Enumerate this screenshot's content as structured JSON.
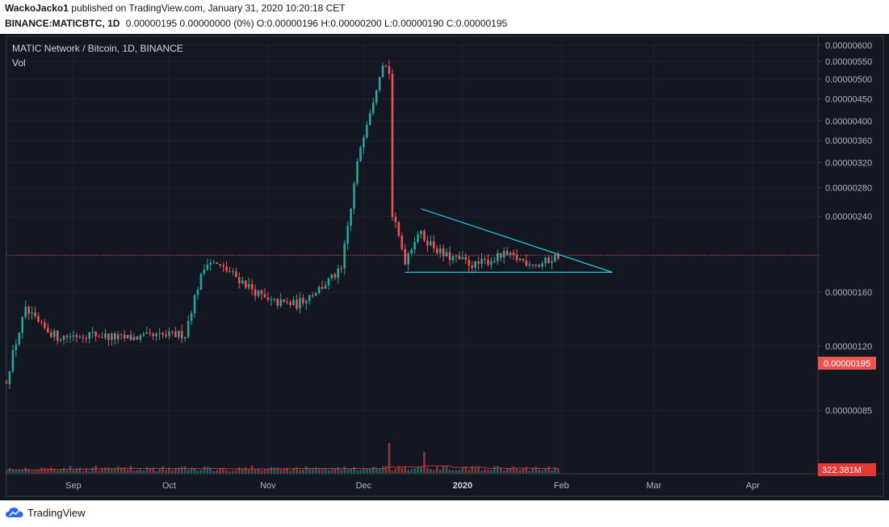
{
  "header": {
    "author": "WackoJacko1",
    "published_text": "published on TradingView.com, January 31, 2020 10:20:18 CET",
    "symbol": "BINANCE:MATICBTC, 1D",
    "ohlc_text": "0.00000195 0.00000000 (0%) O:0.00000196 H:0.00000200 L:0.00000190 C:0.00000195"
  },
  "footer": {
    "brand": "TradingView"
  },
  "colors": {
    "background": "#131722",
    "up": "#26a69a",
    "down": "#ef5350",
    "trendline": "#1fc7d4",
    "ma": "#d32f2f",
    "price_line": "#ef5350"
  },
  "chart_data": {
    "type": "candlestick",
    "title": "MATIC Network / Bitcoin, 1D, BINANCE",
    "subtitle": "Vol",
    "y_axis_ticks": [
      "0.00000600",
      "0.00000550",
      "0.00000500",
      "0.00000450",
      "0.00000400",
      "0.00000360",
      "0.00000320",
      "0.00000280",
      "0.00000240",
      "0.00000195",
      "0.00000160",
      "0.00000120",
      "0.00000085"
    ],
    "y_axis_scale": "log",
    "x_axis_ticks": [
      "Sep",
      "Oct",
      "Nov",
      "Dec",
      "2020",
      "Feb",
      "Mar",
      "Apr"
    ],
    "last_price_label": "0.00000195",
    "volume_label": "322.381M",
    "price_path": [
      [
        "2019-08-11",
        1e-06
      ],
      [
        "2019-08-17",
        1.45e-06
      ],
      [
        "2019-08-22",
        1.33e-06
      ],
      [
        "2019-08-27",
        1.26e-06
      ],
      [
        "2019-09-06",
        1.28e-06
      ],
      [
        "2019-09-16",
        1.25e-06
      ],
      [
        "2019-09-26",
        1.26e-06
      ],
      [
        "2019-10-06",
        1.28e-06
      ],
      [
        "2019-10-10",
        1.65e-06
      ],
      [
        "2019-10-13",
        1.9e-06
      ],
      [
        "2019-10-20",
        1.78e-06
      ],
      [
        "2019-11-01",
        1.52e-06
      ],
      [
        "2019-11-10",
        1.5e-06
      ],
      [
        "2019-11-18",
        1.65e-06
      ],
      [
        "2019-11-24",
        1.8e-06
      ],
      [
        "2019-11-27",
        2.5e-06
      ],
      [
        "2019-11-30",
        3.5e-06
      ],
      [
        "2019-12-04",
        4.5e-06
      ],
      [
        "2019-12-07",
        5.5e-06
      ],
      [
        "2019-12-09",
        5.2e-06
      ],
      [
        "2019-12-10",
        2.4e-06
      ],
      [
        "2019-12-14",
        1.9e-06
      ],
      [
        "2019-12-18",
        2.2e-06
      ],
      [
        "2019-12-26",
        1.95e-06
      ],
      [
        "2020-01-05",
        1.85e-06
      ],
      [
        "2020-01-14",
        1.95e-06
      ],
      [
        "2020-01-25",
        1.85e-06
      ],
      [
        "2020-01-31",
        1.95e-06
      ]
    ],
    "volume_peaks": [
      [
        "2019-12-09",
        "largest"
      ],
      [
        "2019-12-20",
        "large"
      ]
    ],
    "annotations": [
      {
        "type": "trendline",
        "label": "descending",
        "from": [
          "2019-12-19",
          2.5e-06
        ],
        "to": [
          "2020-02-17",
          1.78e-06
        ]
      },
      {
        "type": "trendline",
        "label": "support",
        "from": [
          "2019-12-14",
          1.78e-06
        ],
        "to": [
          "2020-02-17",
          1.78e-06
        ]
      }
    ]
  }
}
